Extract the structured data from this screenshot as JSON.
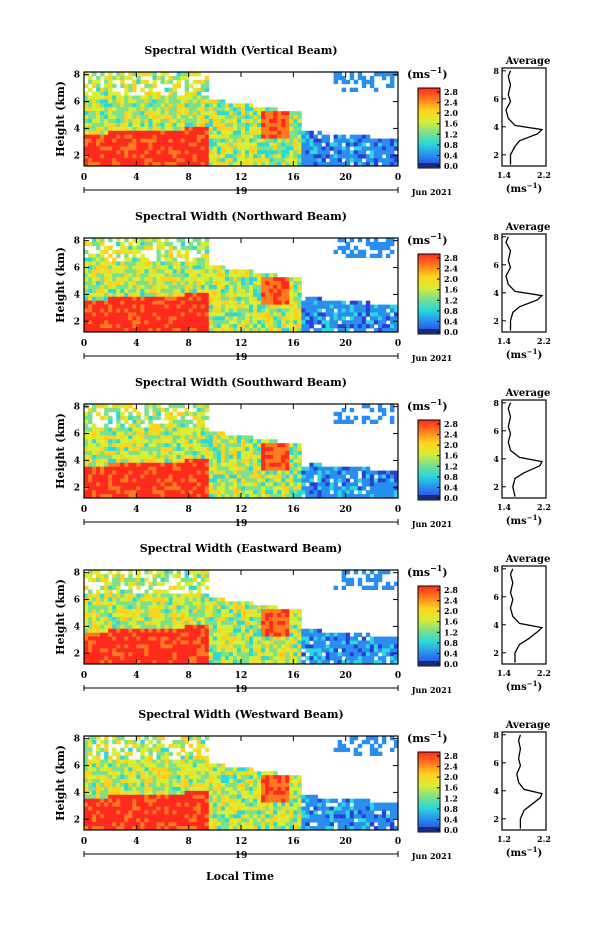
{
  "x_axis_title": "Local Time",
  "colorbar": {
    "unit_prefix": "(ms",
    "unit_sup": "−1",
    "unit_suffix": ")",
    "ticks": [
      "2.8",
      "2.4",
      "2.0",
      "1.6",
      "1.2",
      "0.8",
      "0.4",
      "0.0"
    ],
    "stops": [
      "#ff2a1e",
      "#ff7a1e",
      "#ffd21e",
      "#d9ee32",
      "#7de08c",
      "#2ad9d9",
      "#2a8ef0",
      "#2a3ed9"
    ]
  },
  "date_day": "19",
  "date_label": "Jun 2021",
  "panels": [
    {
      "title": "Spectral Width (Vertical Beam)",
      "ylabel": "Height (km)",
      "avg_title": "Average",
      "avg_xticks": [
        "1.4",
        "2.2"
      ],
      "avg_xlabel": "(ms"
    },
    {
      "title": "Spectral Width (Northward Beam)",
      "ylabel": "Height (km)",
      "avg_title": "Average",
      "avg_xticks": [
        "1.4",
        "2.2"
      ],
      "avg_xlabel": "(ms"
    },
    {
      "title": "Spectral Width (Southward Beam)",
      "ylabel": "Height (km)",
      "avg_title": "Average",
      "avg_xticks": [
        "1.4",
        "2.2"
      ],
      "avg_xlabel": "(ms"
    },
    {
      "title": "Spectral Width (Eastward Beam)",
      "ylabel": "Height (km)",
      "avg_title": "Average",
      "avg_xticks": [
        "1.4",
        "2.2"
      ],
      "avg_xlabel": "(ms"
    },
    {
      "title": "Spectral Width (Westward Beam)",
      "ylabel": "Height (km)",
      "avg_title": "Average",
      "avg_xticks": [
        "1.2",
        "2.2"
      ],
      "avg_xlabel": "(ms"
    }
  ],
  "chart_data": {
    "type": "heatmap",
    "x_axis": {
      "label": "Local Time",
      "ticks": [
        "0",
        "4",
        "8",
        "12",
        "16",
        "20",
        "0"
      ],
      "range_hours": [
        0,
        24
      ]
    },
    "y_axis": {
      "label": "Height (km)",
      "ticks": [
        "2",
        "4",
        "6",
        "8"
      ],
      "range_km": [
        1.2,
        8.2
      ]
    },
    "color_scale": {
      "unit": "ms^-1",
      "range": [
        0.0,
        2.8
      ]
    },
    "description_of_pattern": [
      {
        "time_range_h": [
          0,
          9.5
        ],
        "height_range_km": [
          1.2,
          4.0
        ],
        "approx_width": 2.7
      },
      {
        "time_range_h": [
          0,
          9.5
        ],
        "height_range_km": [
          4.0,
          8.2
        ],
        "approx_width": 1.4
      },
      {
        "time_range_h": [
          9.5,
          16.5
        ],
        "height_range_km": [
          1.2,
          5.0
        ],
        "approx_width": 1.3
      },
      {
        "time_range_h": [
          16.5,
          24
        ],
        "height_range_km": [
          1.2,
          3.5
        ],
        "approx_width": 0.4
      }
    ],
    "averages": [
      {
        "beam": "Vertical",
        "xrange": [
          1.4,
          2.2
        ],
        "profile": [
          [
            1.5,
            1.3
          ],
          [
            1.5,
            2.0
          ],
          [
            1.6,
            2.6
          ],
          [
            1.7,
            3.0
          ],
          [
            2.1,
            3.5
          ],
          [
            2.2,
            3.8
          ],
          [
            1.6,
            4.1
          ],
          [
            1.45,
            4.6
          ],
          [
            1.4,
            5.2
          ],
          [
            1.5,
            5.8
          ],
          [
            1.45,
            6.3
          ],
          [
            1.5,
            7.0
          ],
          [
            1.45,
            7.6
          ],
          [
            1.5,
            8.0
          ]
        ]
      },
      {
        "beam": "Northward",
        "xrange": [
          1.4,
          2.2
        ],
        "profile": [
          [
            1.5,
            1.3
          ],
          [
            1.5,
            2.0
          ],
          [
            1.55,
            2.6
          ],
          [
            1.7,
            3.0
          ],
          [
            2.1,
            3.5
          ],
          [
            2.2,
            3.8
          ],
          [
            1.6,
            4.1
          ],
          [
            1.45,
            4.6
          ],
          [
            1.4,
            5.2
          ],
          [
            1.5,
            5.8
          ],
          [
            1.45,
            6.3
          ],
          [
            1.5,
            7.0
          ],
          [
            1.4,
            7.6
          ],
          [
            1.45,
            8.0
          ]
        ]
      },
      {
        "beam": "Southward",
        "xrange": [
          1.4,
          2.2
        ],
        "profile": [
          [
            1.6,
            1.3
          ],
          [
            1.55,
            2.0
          ],
          [
            1.6,
            2.6
          ],
          [
            1.8,
            3.0
          ],
          [
            2.15,
            3.5
          ],
          [
            2.2,
            3.8
          ],
          [
            1.7,
            4.1
          ],
          [
            1.5,
            4.6
          ],
          [
            1.45,
            5.2
          ],
          [
            1.5,
            5.8
          ],
          [
            1.45,
            6.3
          ],
          [
            1.5,
            7.0
          ],
          [
            1.45,
            7.6
          ],
          [
            1.5,
            8.0
          ]
        ]
      },
      {
        "beam": "Eastward",
        "xrange": [
          1.4,
          2.2
        ],
        "profile": [
          [
            1.6,
            1.3
          ],
          [
            1.6,
            2.0
          ],
          [
            1.7,
            2.6
          ],
          [
            1.9,
            3.0
          ],
          [
            2.1,
            3.5
          ],
          [
            2.2,
            3.8
          ],
          [
            1.7,
            4.1
          ],
          [
            1.55,
            4.6
          ],
          [
            1.5,
            5.2
          ],
          [
            1.55,
            5.8
          ],
          [
            1.5,
            6.3
          ],
          [
            1.55,
            7.0
          ],
          [
            1.5,
            7.6
          ],
          [
            1.55,
            8.0
          ]
        ]
      },
      {
        "beam": "Westward",
        "xrange": [
          1.2,
          2.2
        ],
        "profile": [
          [
            1.6,
            1.3
          ],
          [
            1.6,
            2.0
          ],
          [
            1.7,
            2.6
          ],
          [
            1.9,
            3.0
          ],
          [
            2.15,
            3.5
          ],
          [
            2.2,
            3.8
          ],
          [
            1.7,
            4.1
          ],
          [
            1.55,
            4.6
          ],
          [
            1.5,
            5.2
          ],
          [
            1.6,
            5.8
          ],
          [
            1.55,
            6.3
          ],
          [
            1.6,
            7.0
          ],
          [
            1.55,
            7.6
          ],
          [
            1.6,
            8.0
          ]
        ]
      }
    ]
  }
}
